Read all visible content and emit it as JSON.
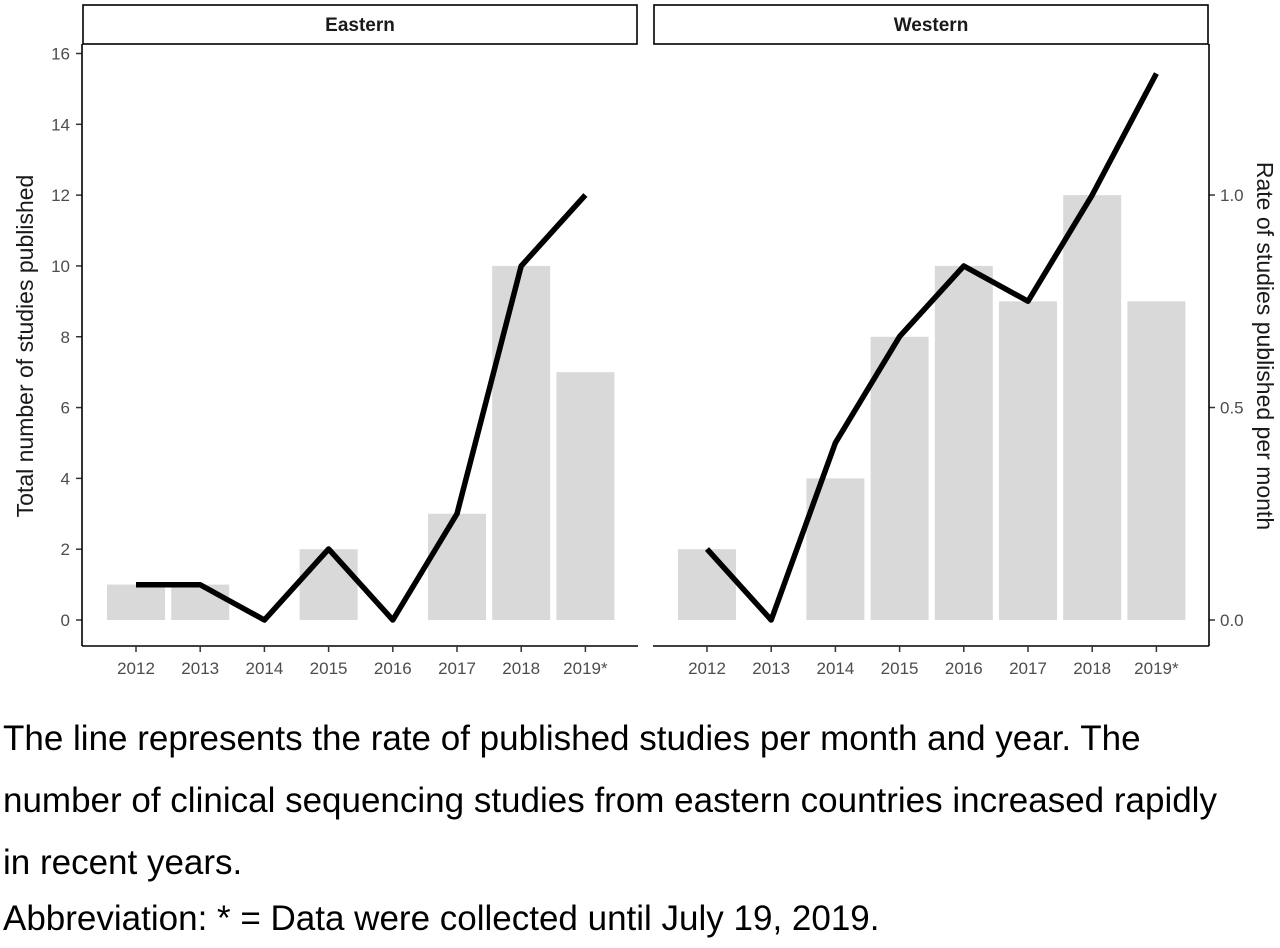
{
  "chart_data": {
    "type": "bar",
    "categories": [
      "2012",
      "2013",
      "2014",
      "2015",
      "2016",
      "2017",
      "2018",
      "2019*"
    ],
    "ylabel_left": "Total number of studies published",
    "ylabel_right": "Rate of studies published per month",
    "ylim_left": [
      0,
      16
    ],
    "yticks_left": [
      0,
      2,
      4,
      6,
      8,
      10,
      12,
      14,
      16
    ],
    "ylim_right": [
      0,
      1.333
    ],
    "yticks_right": [
      "0.0",
      "0.5",
      "1.0"
    ],
    "grid": false,
    "bar_color": "#d9d9d9",
    "line_color": "#000000",
    "panels": [
      {
        "name": "Eastern",
        "bars": [
          1,
          1,
          0,
          2,
          0,
          3,
          10,
          7
        ],
        "rate": [
          0.083,
          0.083,
          0.0,
          0.167,
          0.0,
          0.25,
          0.833,
          1.0
        ]
      },
      {
        "name": "Western",
        "bars": [
          2,
          0,
          4,
          8,
          10,
          9,
          12,
          9
        ],
        "rate": [
          0.167,
          0.0,
          0.417,
          0.667,
          0.833,
          0.75,
          1.0,
          1.286
        ]
      }
    ]
  },
  "caption": {
    "line1": "The line represents the rate of published studies per month and year. The",
    "line2": "number of clinical sequencing studies from eastern countries increased rapidly",
    "line3": "in recent years.",
    "abbreviation": "Abbreviation: * = Data were collected until July 19, 2019."
  }
}
